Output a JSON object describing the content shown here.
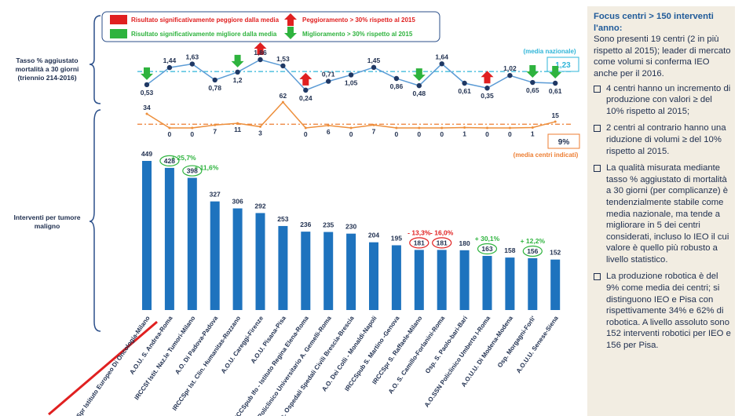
{
  "legend": {
    "items": [
      "Risultato significativamente peggiore dalla media",
      "Peggioramento > 30% rispetto al 2015",
      "Risultato significativamente migliore dalla media",
      "Miglioramento > 30% rispetto al 2015"
    ]
  },
  "chart_data": [
    {
      "type": "line",
      "title": "Tasso % aggiustato mortalità a 30 giorni (triennio 214-2016)",
      "color": "#5b9bd5",
      "marker_color": "#1f3864",
      "values": [
        0.53,
        1.44,
        1.63,
        0.78,
        1.2,
        1.86,
        1.53,
        0.24,
        0.71,
        1.05,
        1.45,
        0.86,
        0.48,
        1.64,
        0.61,
        0.35,
        1.02,
        0.65,
        0.61
      ],
      "value_labels": [
        "0,53",
        "1,44",
        "1,63",
        "0,78",
        "1,2",
        "1,86",
        "1,53",
        "0,24",
        "0,71",
        "1,05",
        "1,45",
        "0,86",
        "0,48",
        "1,64",
        "0,61",
        "0,35",
        "1,02",
        "0,65",
        "0,61"
      ],
      "trend": [
        "down",
        null,
        null,
        null,
        "down",
        "up",
        null,
        "up",
        null,
        null,
        null,
        null,
        "down",
        null,
        null,
        "up",
        null,
        "down",
        "down"
      ],
      "reference": {
        "value": 1.23,
        "label": "1,23",
        "caption": "(media nazionale)",
        "color": "#2fb5d8"
      }
    },
    {
      "type": "line",
      "color": "#ed8f3c",
      "values": [
        34,
        0,
        0,
        7,
        11,
        3,
        62,
        0,
        6,
        0,
        7,
        0,
        0,
        0,
        1,
        0,
        0,
        1,
        15
      ],
      "reference": {
        "value": 9,
        "label": "9%",
        "caption": "(media centri indicati)",
        "color": "#ed7d31"
      }
    },
    {
      "type": "bar",
      "title": "Interventi per tumore maligno",
      "color": "#1e73be",
      "categories": [
        "Spr Istituto Europeo Di Oncologia-Milano",
        "A.O.U. S. Andrea-Roma",
        "IRCCSf Istit. Naz.le Tumori-Milano",
        "A.O. Di Padova-Padova",
        "IRCCSpr Ist. Clin. Humanitas-Rozzano",
        "A.O.U. Careggi-Firenze",
        "A.O.U. Pisana-Pisa",
        "IRCCSpub Ifo - Istituto Regina Elena-Roma",
        "Policlinico Universitario A. Gemelli-Roma",
        "s. Ospedali Spedali Civili Brescia-Brescia",
        "A.O. Dei Colli - Monaldi-Napoli",
        "IRCCSpub S. Martino -Genova",
        "IRCCSpr S. Raffaele-Milano",
        "A.O. S. Camillo-Forlanini-Roma",
        "Osp. S. Paolo-bari-Bari",
        "A.O.SSN Policlinico Umberto I-Roma",
        "A.O.U.U. Di Modena-Modena",
        "Osp. Morgagni-Forli'",
        "A.O.U.U. Senese-Siena"
      ],
      "values": [
        449,
        428,
        398,
        327,
        306,
        292,
        253,
        236,
        235,
        230,
        204,
        195,
        181,
        181,
        180,
        163,
        158,
        156,
        152
      ],
      "changes": [
        null,
        "+ 25,7%",
        "+ 11,6%",
        null,
        null,
        null,
        null,
        null,
        null,
        null,
        null,
        null,
        "- 13,3%",
        "- 16,0%",
        null,
        "+ 30,1%",
        null,
        "+ 12,2%",
        null
      ],
      "change_colors": [
        null,
        "#2eb33e",
        "#2eb33e",
        null,
        null,
        null,
        null,
        null,
        null,
        null,
        null,
        null,
        "#e02020",
        "#e02020",
        null,
        "#2eb33e",
        null,
        "#2eb33e",
        null
      ]
    }
  ],
  "sidebar": {
    "title": "Focus centri > 150 interventi l'anno:",
    "intro": "Sono presenti 19 centri (2 in più rispetto al 2015); leader di mercato come volumi si conferma IEO anche per il 2016.",
    "bullets": [
      "4 centri hanno un incremento di produzione con valori ≥ del 10% rispetto al 2015;",
      "2 centri al contrario hanno una riduzione di volumi ≥ del 10% rispetto al 2015.",
      "La qualità misurata mediante tasso % aggiustato di mortalità a 30 giorni (per complicanze) è tendenzialmente stabile come media nazionale, ma tende a migliorare in 5 dei centri considerati, incluso lo IEO il cui valore è quello più robusto a livello statistico.",
      "La produzione robotica è del 9% come media dei centri; si distinguono IEO e Pisa con rispettivamente 34% e 62% di robotica. A livello assoluto sono 152 interventi robotici per IEO e 156 per Pisa."
    ]
  }
}
